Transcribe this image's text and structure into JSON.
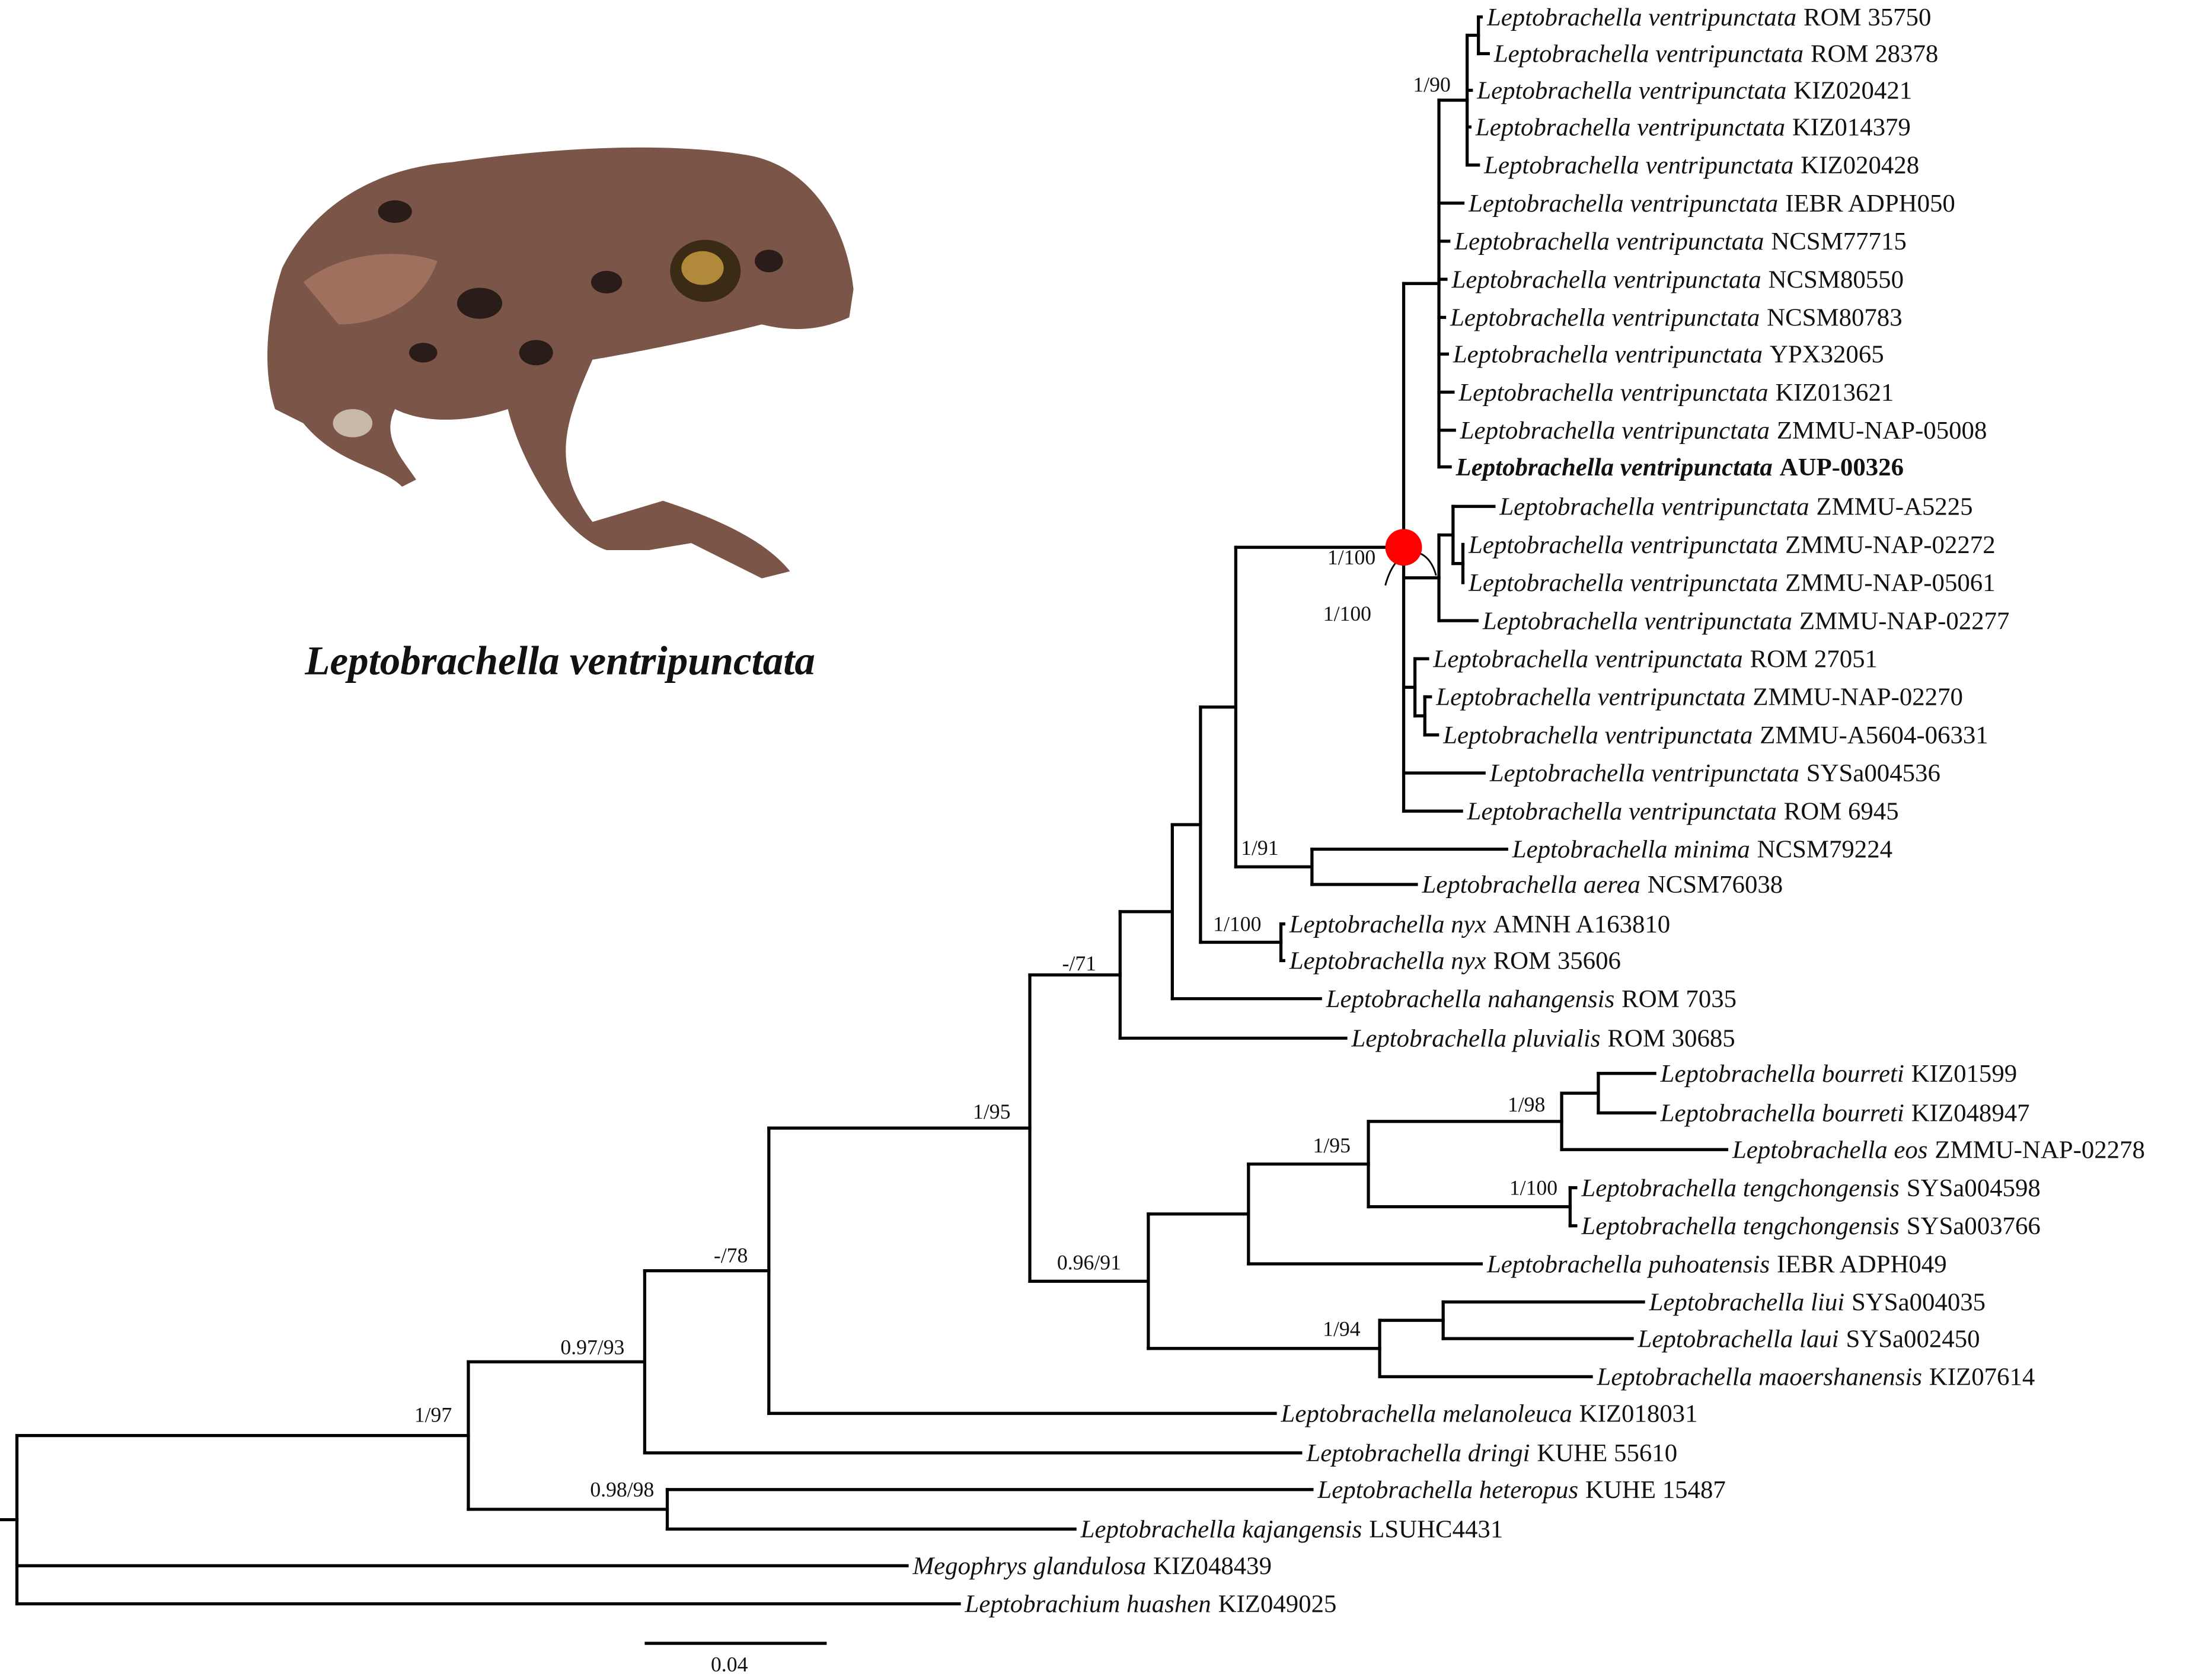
{
  "photo_caption": "Leptobrachella ventripunctata",
  "leaves": [
    {
      "taxon": "Leptobrachella ventripunctata",
      "voucher": "ROM 35750"
    },
    {
      "taxon": "Leptobrachella ventripunctata",
      "voucher": "ROM 28378"
    },
    {
      "taxon": "Leptobrachella ventripunctata",
      "voucher": "KIZ020421"
    },
    {
      "taxon": "Leptobrachella ventripunctata",
      "voucher": "KIZ014379"
    },
    {
      "taxon": "Leptobrachella ventripunctata",
      "voucher": "KIZ020428"
    },
    {
      "taxon": "Leptobrachella ventripunctata",
      "voucher": "IEBR ADPH050"
    },
    {
      "taxon": "Leptobrachella ventripunctata",
      "voucher": "NCSM77715"
    },
    {
      "taxon": "Leptobrachella ventripunctata",
      "voucher": "NCSM80550"
    },
    {
      "taxon": "Leptobrachella ventripunctata",
      "voucher": "NCSM80783"
    },
    {
      "taxon": "Leptobrachella ventripunctata",
      "voucher": "YPX32065"
    },
    {
      "taxon": "Leptobrachella ventripunctata",
      "voucher": "KIZ013621"
    },
    {
      "taxon": "Leptobrachella ventripunctata",
      "voucher": "ZMMU-NAP-05008"
    },
    {
      "taxon": "Leptobrachella ventripunctata",
      "voucher": "AUP-00326",
      "bold": true
    },
    {
      "taxon": "Leptobrachella ventripunctata",
      "voucher": "ZMMU-A5225"
    },
    {
      "taxon": "Leptobrachella ventripunctata",
      "voucher": "ZMMU-NAP-02272"
    },
    {
      "taxon": "Leptobrachella ventripunctata",
      "voucher": "ZMMU-NAP-05061"
    },
    {
      "taxon": "Leptobrachella ventripunctata",
      "voucher": "ZMMU-NAP-02277"
    },
    {
      "taxon": "Leptobrachella ventripunctata",
      "voucher": "ROM 27051"
    },
    {
      "taxon": "Leptobrachella ventripunctata",
      "voucher": "ZMMU-NAP-02270"
    },
    {
      "taxon": "Leptobrachella ventripunctata",
      "voucher": "ZMMU-A5604-06331"
    },
    {
      "taxon": "Leptobrachella ventripunctata",
      "voucher": "SYSa004536"
    },
    {
      "taxon": "Leptobrachella ventripunctata",
      "voucher": "ROM 6945"
    },
    {
      "taxon": "Leptobrachella minima",
      "voucher": "NCSM79224"
    },
    {
      "taxon": "Leptobrachella aerea",
      "voucher": "NCSM76038"
    },
    {
      "taxon": "Leptobrachella nyx",
      "voucher": "AMNH A163810"
    },
    {
      "taxon": "Leptobrachella nyx",
      "voucher": "ROM 35606"
    },
    {
      "taxon": "Leptobrachella nahangensis",
      "voucher": "ROM 7035"
    },
    {
      "taxon": "Leptobrachella pluvialis",
      "voucher": "ROM 30685"
    },
    {
      "taxon": "Leptobrachella bourreti",
      "voucher": "KIZ01599"
    },
    {
      "taxon": "Leptobrachella bourreti",
      "voucher": "KIZ048947"
    },
    {
      "taxon": "Leptobrachella eos",
      "voucher": "ZMMU-NAP-02278"
    },
    {
      "taxon": "Leptobrachella tengchongensis",
      "voucher": "SYSa004598"
    },
    {
      "taxon": "Leptobrachella tengchongensis",
      "voucher": "SYSa003766"
    },
    {
      "taxon": "Leptobrachella puhoatensis",
      "voucher": "IEBR ADPH049"
    },
    {
      "taxon": "Leptobrachella liui",
      "voucher": "SYSa004035"
    },
    {
      "taxon": "Leptobrachella laui",
      "voucher": "SYSa002450"
    },
    {
      "taxon": "Leptobrachella maoershanensis",
      "voucher": "KIZ07614"
    },
    {
      "taxon": "Leptobrachella melanoleuca",
      "voucher": "KIZ018031"
    },
    {
      "taxon": "Leptobrachella dringi",
      "voucher": "KUHE 55610"
    },
    {
      "taxon": "Leptobrachella heteropus",
      "voucher": "KUHE 15487"
    },
    {
      "taxon": "Leptobrachella kajangensis",
      "voucher": "LSUHC4431"
    },
    {
      "taxon": "Megophrys glandulosa",
      "voucher": "KIZ048439"
    },
    {
      "taxon": "Leptobrachium huashen",
      "voucher": "KIZ049025"
    }
  ],
  "support": [
    "1/90",
    "1/100",
    "1/100",
    "1/91",
    "1/100",
    "-/71",
    "1/95",
    "1/98",
    "1/95",
    "1/100",
    "0.96/91",
    "1/94",
    "-/78",
    "0.97/93",
    "1/97",
    "0.98/98"
  ],
  "scale_bar": "0.04"
}
